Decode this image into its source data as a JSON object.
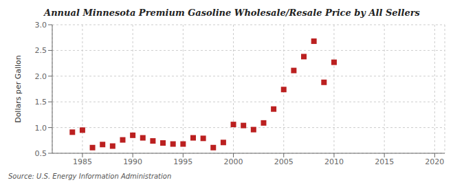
{
  "chart_data": {
    "type": "scatter",
    "title": "Annual Minnesota Premium Gasoline Wholesale/Resale Price by All Sellers",
    "ylabel": "Dollars per Gallon",
    "source": "Source: U.S. Energy Information Administration",
    "x": [
      1984,
      1985,
      1986,
      1987,
      1988,
      1989,
      1990,
      1991,
      1992,
      1993,
      1994,
      1995,
      1996,
      1997,
      1998,
      1999,
      2000,
      2001,
      2002,
      2003,
      2004,
      2005,
      2006,
      2007,
      2008,
      2009,
      2010
    ],
    "values": [
      0.91,
      0.95,
      0.61,
      0.67,
      0.64,
      0.76,
      0.85,
      0.8,
      0.74,
      0.7,
      0.68,
      0.68,
      0.8,
      0.79,
      0.61,
      0.71,
      1.06,
      1.04,
      0.96,
      1.09,
      1.36,
      1.74,
      2.11,
      2.38,
      2.68,
      1.88,
      2.27
    ],
    "color": "#bb2020",
    "marker": "square",
    "xlim": [
      1982,
      2021
    ],
    "ylim": [
      0.5,
      3.0
    ],
    "xticks": [
      1985,
      1990,
      1995,
      2000,
      2005,
      2010,
      2015,
      2020
    ],
    "yticks": [
      0.5,
      {
        "value": 1.0,
        "label": "1.0"
      },
      1.5,
      {
        "value": 2.0,
        "label": "2.0"
      },
      2.5,
      {
        "value": 3.0,
        "label": "3.0"
      }
    ],
    "grid": true
  }
}
